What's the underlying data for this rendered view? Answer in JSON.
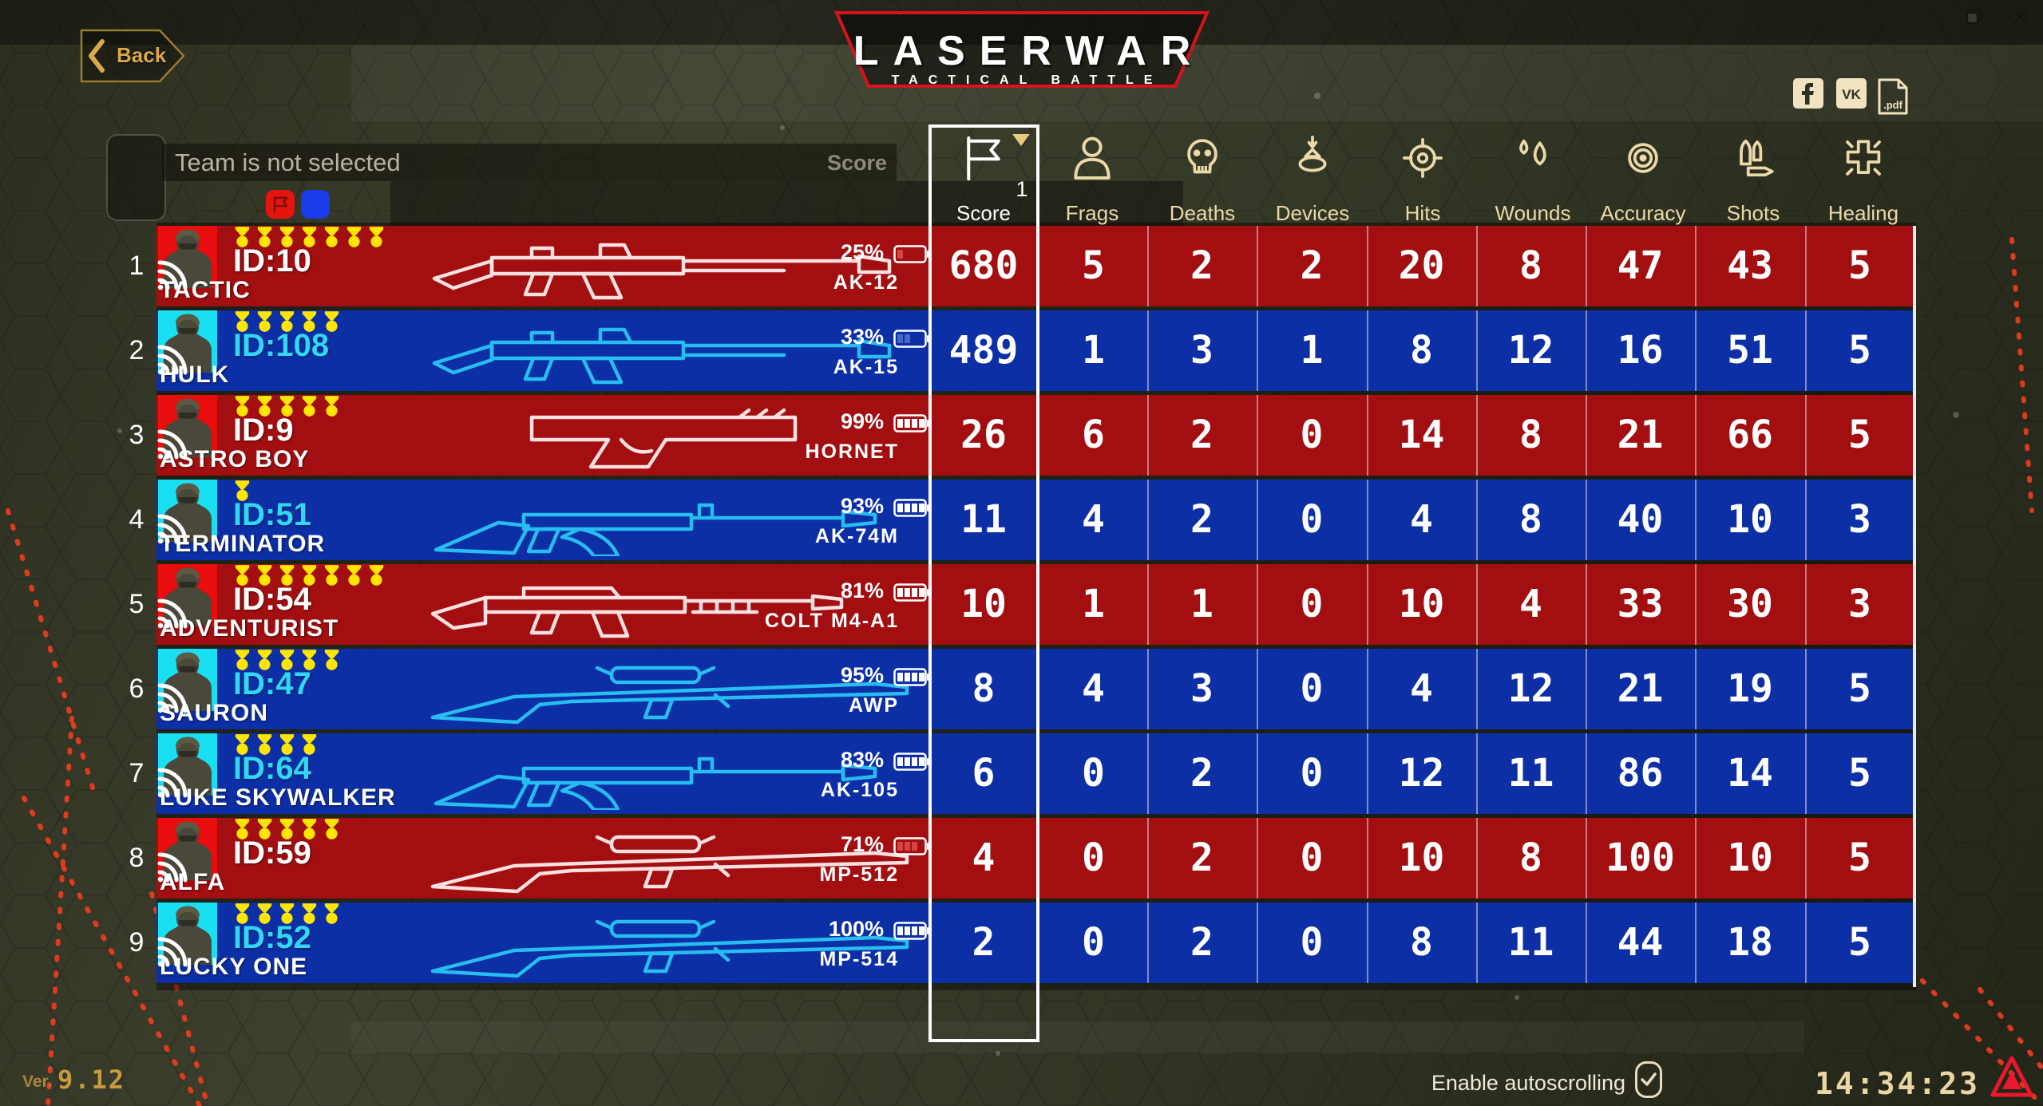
{
  "window": {
    "controls": [
      {
        "icon": "restore-icon"
      },
      {
        "icon": "close-icon"
      }
    ]
  },
  "top": {
    "back_label": "Back",
    "logo_title": "LASERWAR",
    "logo_subtitle": "TACTICAL BATTLE",
    "social": [
      {
        "icon": "facebook-icon",
        "label": "f"
      },
      {
        "icon": "vk-icon",
        "label": "VK"
      },
      {
        "icon": "pdf-icon",
        "label": ".pdf"
      }
    ]
  },
  "team_bar": {
    "placeholder": "Team is not selected",
    "score_label": "Score",
    "badges": [
      {
        "team": "red",
        "icon": "flag-icon"
      },
      {
        "team": "blue",
        "icon": ""
      }
    ]
  },
  "table": {
    "columns": [
      {
        "key": "score",
        "label": "Score",
        "icon": "flag-icon",
        "selected": true,
        "sort_rank": "1"
      },
      {
        "key": "frags",
        "label": "Frags",
        "icon": "person-icon"
      },
      {
        "key": "deaths",
        "label": "Deaths",
        "icon": "skull-icon"
      },
      {
        "key": "devices",
        "label": "Devices",
        "icon": "device-icon"
      },
      {
        "key": "hits",
        "label": "Hits",
        "icon": "crosshair-icon"
      },
      {
        "key": "wounds",
        "label": "Wounds",
        "icon": "drops-icon"
      },
      {
        "key": "accuracy",
        "label": "Accuracy",
        "icon": "bullseye-icon"
      },
      {
        "key": "shots",
        "label": "Shots",
        "icon": "bullets-icon"
      },
      {
        "key": "healing",
        "label": "Healing",
        "icon": "medcross-icon"
      }
    ],
    "players": [
      {
        "rank": "1",
        "team": "red",
        "id": "ID:10",
        "name": "TACTIC",
        "medals": 7,
        "battery": "25%",
        "weapon": "AK-12",
        "weapon_type": "ar",
        "stats": [
          "680",
          "5",
          "2",
          "2",
          "20",
          "8",
          "47",
          "43",
          "5"
        ]
      },
      {
        "rank": "2",
        "team": "blue",
        "id": "ID:108",
        "name": "HULK",
        "medals": 5,
        "battery": "33%",
        "weapon": "AK-15",
        "weapon_type": "ar",
        "stats": [
          "489",
          "1",
          "3",
          "1",
          "8",
          "12",
          "16",
          "51",
          "5"
        ]
      },
      {
        "rank": "3",
        "team": "red",
        "id": "ID:9",
        "name": "ASTRO BOY",
        "medals": 5,
        "battery": "99%",
        "weapon": "HORNET",
        "weapon_type": "pistol",
        "stats": [
          "26",
          "6",
          "2",
          "0",
          "14",
          "8",
          "21",
          "66",
          "5"
        ]
      },
      {
        "rank": "4",
        "team": "blue",
        "id": "ID:51",
        "name": "TERMINATOR",
        "medals": 1,
        "battery": "93%",
        "weapon": "AK-74M",
        "weapon_type": "ak",
        "stats": [
          "11",
          "4",
          "2",
          "0",
          "4",
          "8",
          "40",
          "10",
          "3"
        ]
      },
      {
        "rank": "5",
        "team": "red",
        "id": "ID:54",
        "name": "ADVENTURIST",
        "medals": 7,
        "battery": "81%",
        "weapon": "COLT M4-A1",
        "weapon_type": "carbine",
        "stats": [
          "10",
          "1",
          "1",
          "0",
          "10",
          "4",
          "33",
          "30",
          "3"
        ]
      },
      {
        "rank": "6",
        "team": "blue",
        "id": "ID:47",
        "name": "SAURON",
        "medals": 5,
        "battery": "95%",
        "weapon": "AWP",
        "weapon_type": "sniper",
        "stats": [
          "8",
          "4",
          "3",
          "0",
          "4",
          "12",
          "21",
          "19",
          "5"
        ]
      },
      {
        "rank": "7",
        "team": "blue",
        "id": "ID:64",
        "name": "LUKE SKYWALKER",
        "medals": 4,
        "battery": "83%",
        "weapon": "AK-105",
        "weapon_type": "ak",
        "stats": [
          "6",
          "0",
          "2",
          "0",
          "12",
          "11",
          "86",
          "14",
          "5"
        ]
      },
      {
        "rank": "8",
        "team": "red",
        "id": "ID:59",
        "name": "ALFA",
        "medals": 5,
        "battery": "71%",
        "weapon": "MP-512",
        "weapon_type": "sniper",
        "stats": [
          "4",
          "0",
          "2",
          "0",
          "10",
          "8",
          "100",
          "10",
          "5"
        ]
      },
      {
        "rank": "9",
        "team": "blue",
        "id": "ID:52",
        "name": "LUCKY ONE",
        "medals": 5,
        "battery": "100%",
        "weapon": "MP-514",
        "weapon_type": "sniper",
        "stats": [
          "2",
          "0",
          "2",
          "0",
          "8",
          "11",
          "44",
          "18",
          "5"
        ]
      }
    ]
  },
  "footer": {
    "version_label": "Ver.",
    "version": "9.12",
    "autoscroll_label": "Enable autoscrolling",
    "autoscroll_checked": true,
    "time": "14:34:23"
  },
  "colors": {
    "red_row": "#a30e10",
    "blue_row": "#0c2fa6",
    "red_team": "#e90d0d",
    "blue_team": "#18dff2",
    "cyan_text": "#2fd8f7",
    "medal_yellow": "#ffe600",
    "header_cream": "#ecd9a9",
    "gold": "#c9962f",
    "logo_red": "#d8121f",
    "gun_red_row": "#ffecec",
    "gun_blue_row": "#29c5f6"
  }
}
